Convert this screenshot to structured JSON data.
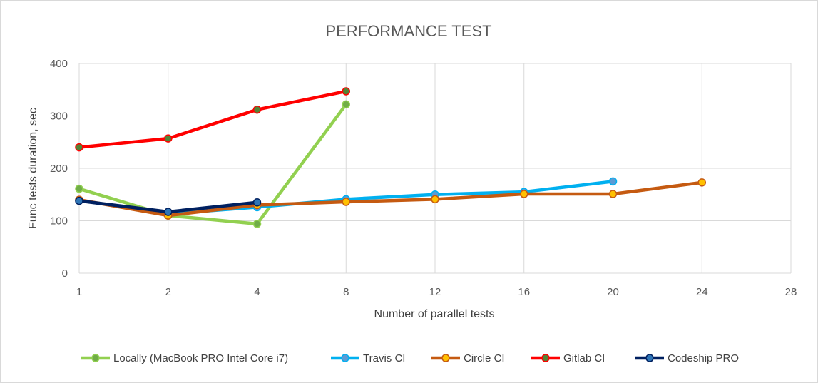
{
  "chart_data": {
    "type": "line",
    "title": "PERFORMANCE TEST",
    "xlabel": "Number of parallel tests",
    "ylabel": "Func tests duration, sec",
    "categories": [
      "1",
      "2",
      "4",
      "8",
      "12",
      "16",
      "20",
      "24",
      "28"
    ],
    "ylim": [
      0,
      400
    ],
    "yticks": [
      "0",
      "100",
      "200",
      "300",
      "400"
    ],
    "grid": true,
    "legend_position": "bottom",
    "series": [
      {
        "name": "Locally (MacBook PRO Intel Core i7)",
        "color": "#92d050",
        "marker": "#70ad47",
        "values": [
          161,
          110,
          94,
          322,
          null,
          null,
          null,
          null,
          null
        ]
      },
      {
        "name": "Travis CI",
        "color": "#00b0f0",
        "marker": "#5b9bd5",
        "values": [
          139,
          113,
          126,
          141,
          150,
          155,
          175,
          null,
          null
        ]
      },
      {
        "name": "Circle CI",
        "color": "#c55a11",
        "marker": "#ffc000",
        "values": [
          140,
          110,
          130,
          136,
          141,
          151,
          151,
          173,
          null
        ]
      },
      {
        "name": "Gitlab CI",
        "color": "#ff0000",
        "marker": "#548235",
        "values": [
          240,
          257,
          312,
          347,
          null,
          null,
          null,
          null,
          null
        ]
      },
      {
        "name": "Codeship PRO",
        "color": "#002060",
        "marker": "#2e75b6",
        "values": [
          138,
          117,
          135,
          null,
          null,
          null,
          null,
          null,
          null
        ]
      }
    ]
  }
}
